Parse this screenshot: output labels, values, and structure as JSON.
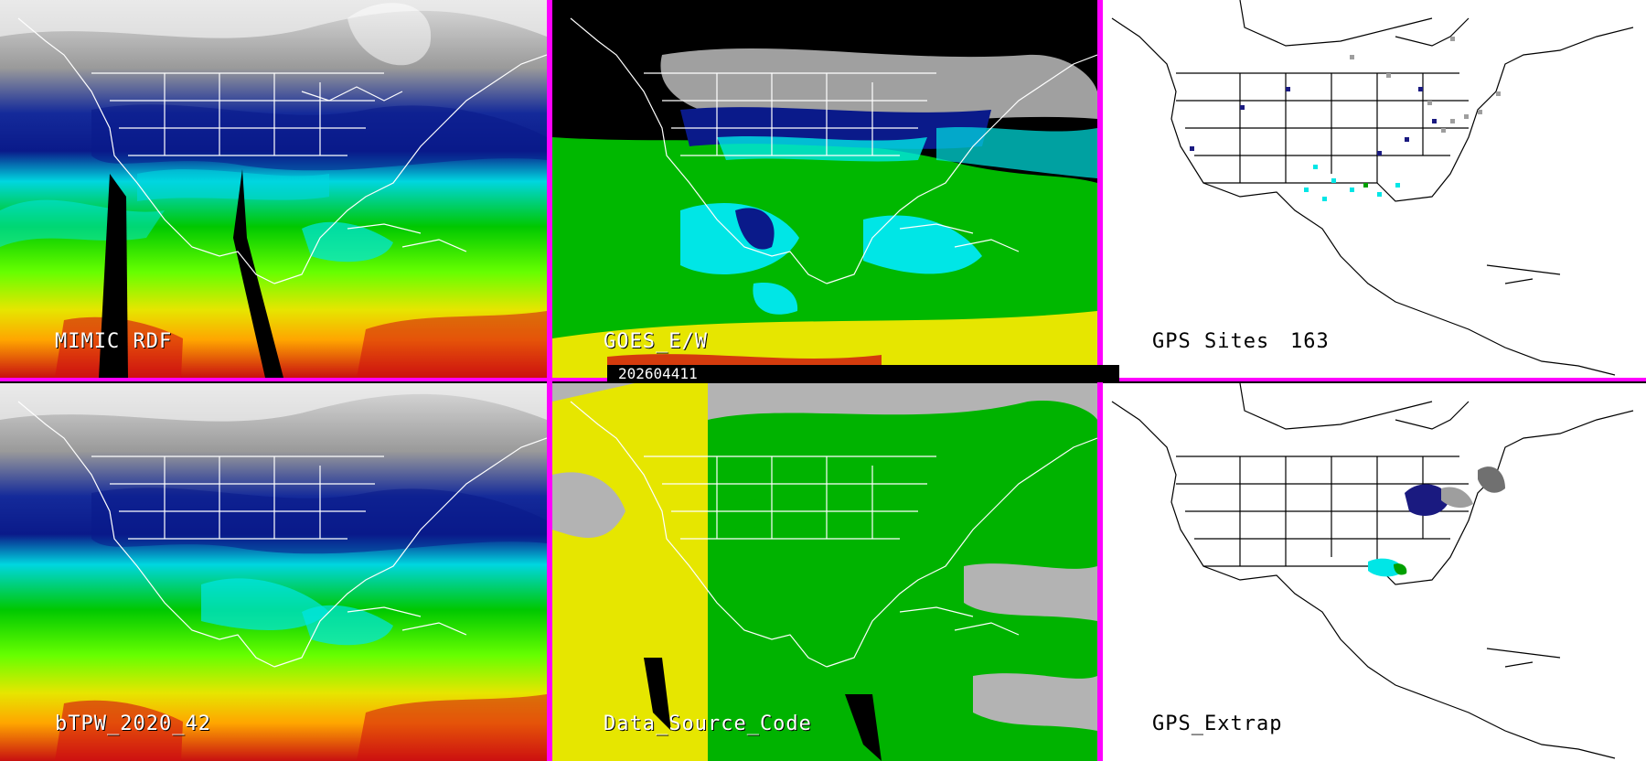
{
  "panels": [
    {
      "id": "mimic",
      "label": "MIMIC RDF"
    },
    {
      "id": "goes",
      "label": "GOES_E/W"
    },
    {
      "id": "gps_sites",
      "label": "GPS Sites",
      "count": "163"
    },
    {
      "id": "btpw",
      "label": "bTPW_2020_42"
    },
    {
      "id": "dsc",
      "label": "Data_Source_Code"
    },
    {
      "id": "gps_extrap",
      "label": "GPS_Extrap"
    }
  ],
  "timestamp": "202604411",
  "colors": {
    "separator": "#ff00ff",
    "tpw_ramp": [
      "#ffffff",
      "#808080",
      "#0a1a8a",
      "#1f3fd0",
      "#00e6e6",
      "#00c000",
      "#66ff00",
      "#e6e600",
      "#ffa500",
      "#d01010"
    ],
    "data_source": [
      "#b3b3b3",
      "#e6e600",
      "#00b300",
      "#000000"
    ],
    "gps_markers": [
      "#1a1a80",
      "#00e6e6",
      "#9e9e9e",
      "#00a000"
    ]
  }
}
